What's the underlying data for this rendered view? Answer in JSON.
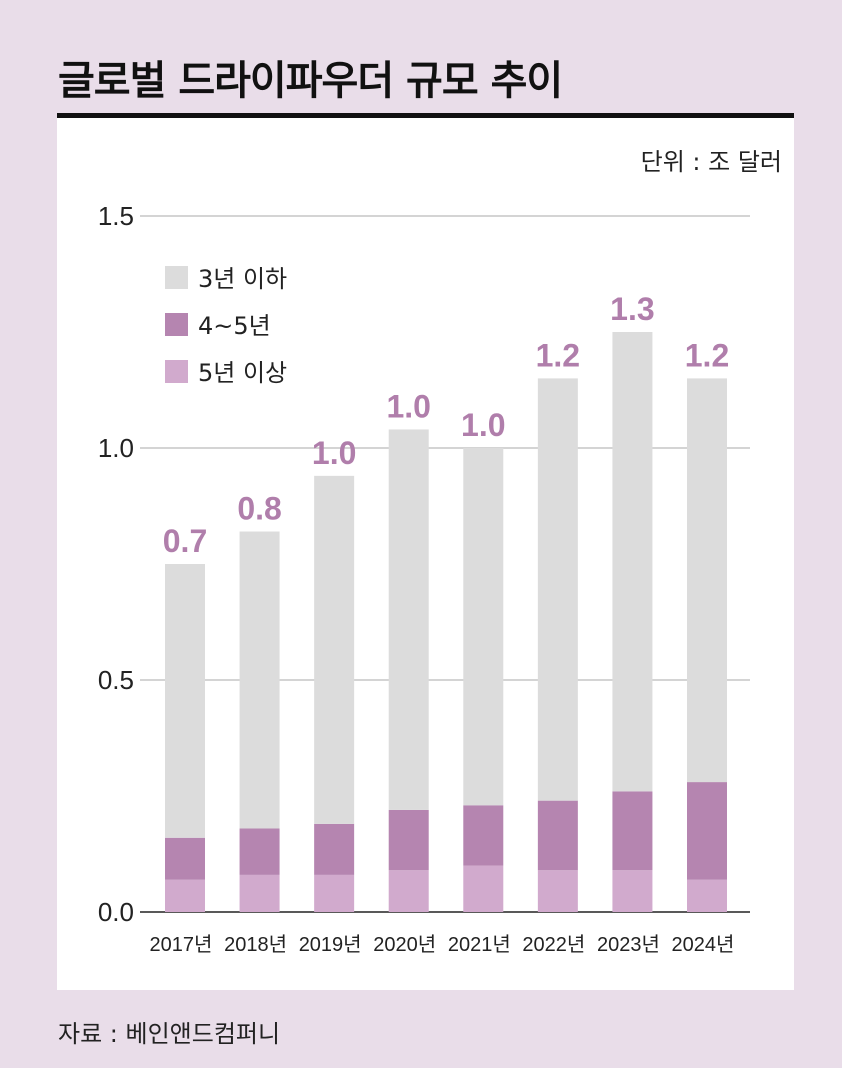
{
  "title": "글로벌 드라이파우더 규모 추이",
  "unit": "단위 : 조 달러",
  "source": "자료 : 베인앤드컴퍼니",
  "colors": {
    "background": "#e9dde9",
    "under3": "#dcdcdc",
    "y4to5": "#b585b0",
    "over5": "#d1aacd",
    "label": "#b07eab"
  },
  "chart_data": {
    "type": "bar",
    "stacked": true,
    "categories": [
      "2017년",
      "2018년",
      "2019년",
      "2020년",
      "2021년",
      "2022년",
      "2023년",
      "2024년"
    ],
    "series": [
      {
        "name": "5년 이상",
        "values": [
          0.07,
          0.08,
          0.08,
          0.09,
          0.1,
          0.09,
          0.09,
          0.07
        ]
      },
      {
        "name": "4~5년",
        "values": [
          0.09,
          0.1,
          0.11,
          0.13,
          0.13,
          0.15,
          0.17,
          0.21
        ]
      },
      {
        "name": "3년 이하",
        "values": [
          0.59,
          0.64,
          0.75,
          0.82,
          0.77,
          0.91,
          0.99,
          0.87
        ]
      }
    ],
    "data_labels": [
      "0.7",
      "0.8",
      "1.0",
      "1.0",
      "1.0",
      "1.2",
      "1.3",
      "1.2"
    ],
    "yticks": [
      "0.0",
      "0.5",
      "1.0",
      "1.5"
    ],
    "ylim": [
      0,
      1.5
    ],
    "grid": true,
    "legend_order": [
      "3년 이하",
      "4~5년",
      "5년 이상"
    ],
    "legend_placement": "top-left"
  }
}
